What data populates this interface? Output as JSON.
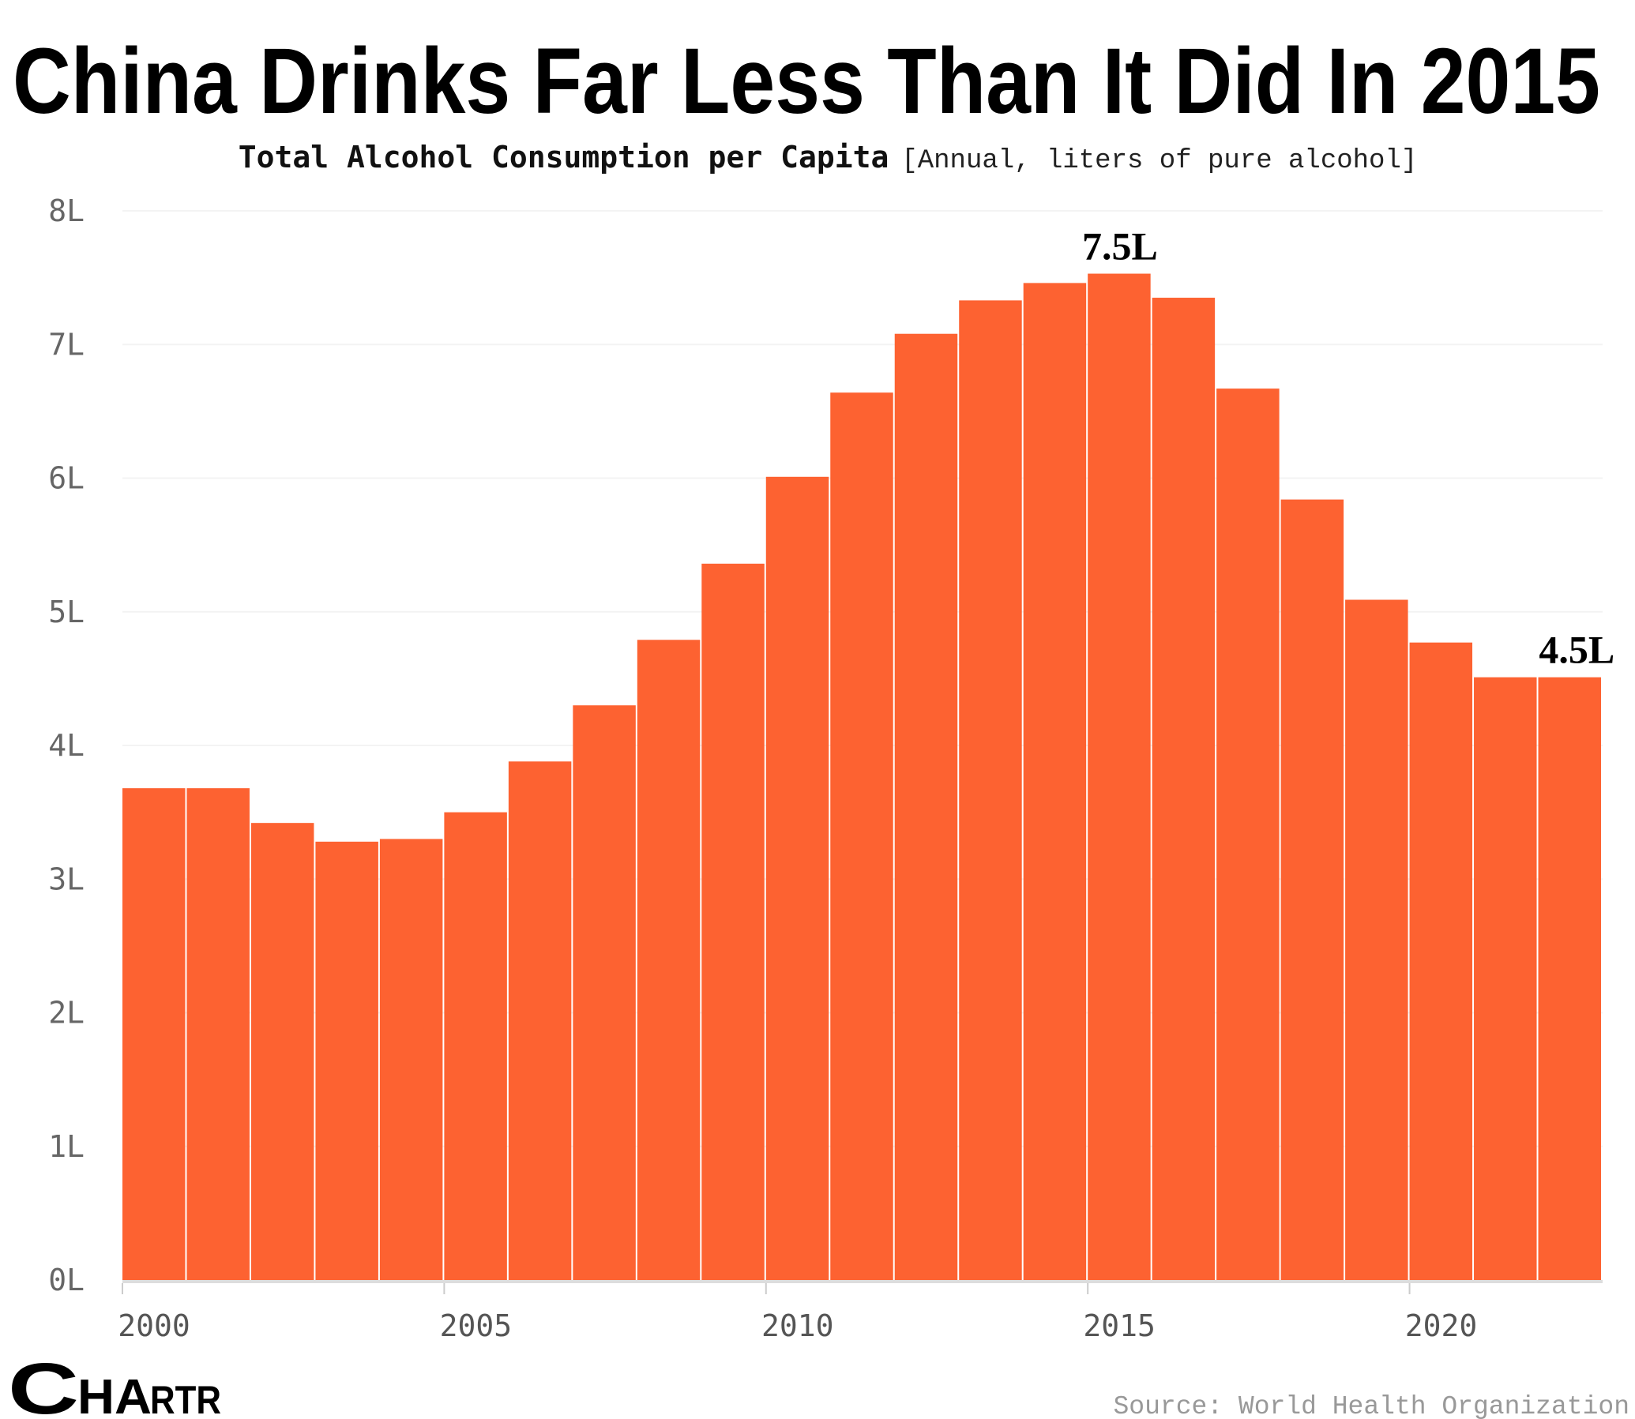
{
  "chart_data": {
    "type": "bar",
    "title": "China Drinks Far Less Than It Did In 2015",
    "subtitle_bold": "Total Alcohol Consumption per Capita",
    "subtitle_note": "[Annual, liters of pure alcohol]",
    "categories": [
      2000,
      2001,
      2002,
      2003,
      2004,
      2005,
      2006,
      2007,
      2008,
      2009,
      2010,
      2011,
      2012,
      2013,
      2014,
      2015,
      2016,
      2017,
      2018,
      2019,
      2020,
      2021,
      2022
    ],
    "values": [
      3.68,
      3.68,
      3.42,
      3.28,
      3.3,
      3.5,
      3.88,
      4.3,
      4.79,
      5.36,
      6.01,
      6.64,
      7.08,
      7.33,
      7.46,
      7.53,
      7.35,
      6.67,
      5.84,
      5.09,
      4.77,
      4.51,
      4.51
    ],
    "ylim": [
      0,
      8
    ],
    "yticks": [
      "0L",
      "1L",
      "2L",
      "3L",
      "4L",
      "5L",
      "6L",
      "7L",
      "8L"
    ],
    "xticks": [
      "2000",
      "2005",
      "2010",
      "2015",
      "2020"
    ],
    "annotations": [
      {
        "year": 2015,
        "text": "7.5L"
      },
      {
        "year": 2022,
        "text": "4.5L"
      }
    ],
    "bar_color": "#FD6231",
    "grid": true,
    "xlabel": "",
    "ylabel": ""
  },
  "footer": {
    "source": "Source: World Health Organization",
    "logo": "CHARTR"
  }
}
